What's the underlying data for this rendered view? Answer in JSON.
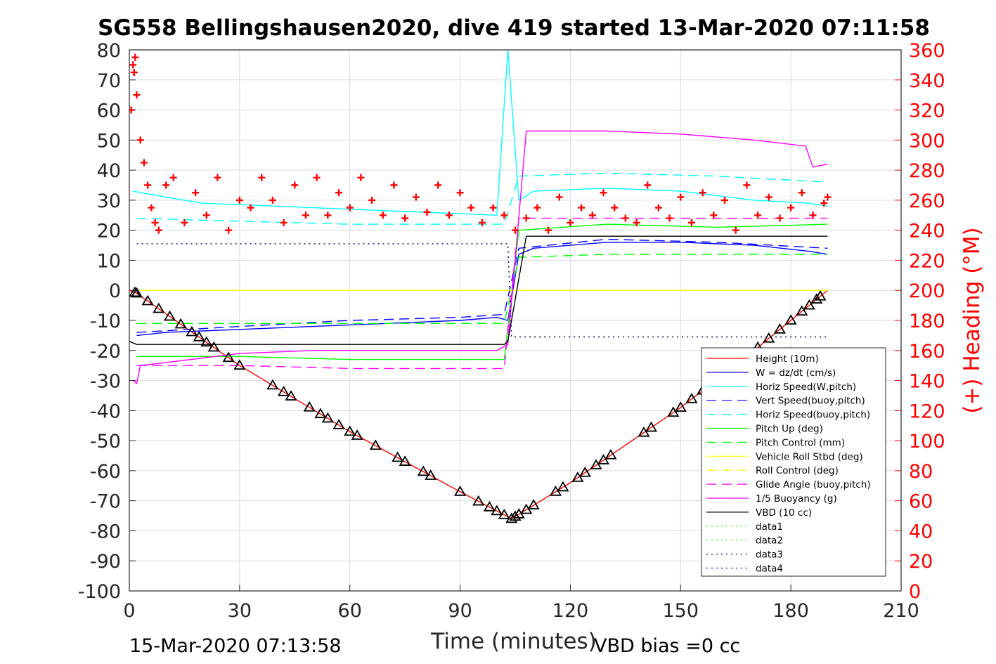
{
  "chart_data": {
    "type": "line",
    "title": "SG558 Bellingshausen2020, dive 419 started 13-Mar-2020 07:11:58",
    "xlabel": "Time (minutes)",
    "ylabel": "",
    "y2label": "(+) Heading (°M)",
    "xlim": [
      0,
      210
    ],
    "ylim": [
      -100,
      80
    ],
    "y2lim": [
      0,
      360
    ],
    "xticks": [
      "0",
      "30",
      "60",
      "90",
      "120",
      "150",
      "180",
      "210"
    ],
    "yticks": [
      "80",
      "70",
      "60",
      "50",
      "40",
      "30",
      "20",
      "10",
      "0",
      "-10",
      "-20",
      "-30",
      "-40",
      "-50",
      "-60",
      "-70",
      "-80",
      "-90",
      "-100"
    ],
    "y2ticks": [
      "360",
      "340",
      "320",
      "300",
      "280",
      "260",
      "240",
      "220",
      "200",
      "180",
      "160",
      "140",
      "120",
      "100",
      "80",
      "60",
      "40",
      "20",
      "0"
    ],
    "grid": true,
    "legend_position": "bottom-right",
    "footer_left": "15-Mar-2020 07:13:58",
    "footer_right": "VBD bias =0 cc",
    "series": [
      {
        "name": "Height (10m)",
        "color": "#ff0000",
        "style": "solid",
        "x": [
          0,
          2,
          30,
          60,
          90,
          104,
          120,
          150,
          170,
          190
        ],
        "y": [
          0,
          -1,
          -25,
          -47,
          -67,
          -76,
          -64,
          -39,
          -20,
          0
        ]
      },
      {
        "name": "W = dz/dt (cm/s)",
        "color": "#0000ff",
        "style": "solid",
        "x": [
          2,
          10,
          30,
          50,
          70,
          90,
          100,
          103,
          106,
          110,
          130,
          150,
          170,
          185,
          190
        ],
        "y": [
          -15,
          -14,
          -13,
          -12,
          -11,
          -10,
          -9,
          -10,
          12,
          14,
          16,
          16,
          15,
          13,
          12
        ]
      },
      {
        "name": "Horiz Speed(W,pitch)",
        "color": "#00ffff",
        "style": "solid",
        "x": [
          1,
          10,
          20,
          40,
          60,
          80,
          100,
          103,
          106,
          110,
          130,
          150,
          170,
          185,
          190
        ],
        "y": [
          33,
          31,
          29,
          28,
          27,
          26,
          25,
          80,
          30,
          33,
          34,
          33,
          30,
          29,
          28
        ]
      },
      {
        "name": "Vert Speed(buoy,pitch)",
        "color": "#0000ff",
        "style": "dashed",
        "x": [
          2,
          30,
          60,
          90,
          102,
          106,
          130,
          160,
          190
        ],
        "y": [
          -14,
          -12,
          -10,
          -9,
          -8,
          14,
          17,
          16,
          14
        ]
      },
      {
        "name": "Horiz Speed(buoy,pitch)",
        "color": "#00ffff",
        "style": "dashed",
        "x": [
          2,
          30,
          60,
          90,
          102,
          106,
          130,
          160,
          190
        ],
        "y": [
          24,
          23,
          22,
          22,
          22,
          38,
          39,
          38,
          36
        ]
      },
      {
        "name": "Pitch Up (deg)",
        "color": "#00ff00",
        "style": "solid",
        "x": [
          2,
          30,
          60,
          90,
          102,
          106,
          130,
          160,
          190
        ],
        "y": [
          -22,
          -22,
          -23,
          -23,
          -23,
          20,
          22,
          21,
          22
        ]
      },
      {
        "name": "Pitch Control (mm)",
        "color": "#00ff00",
        "style": "dashed",
        "x": [
          2,
          30,
          60,
          90,
          102,
          106,
          130,
          160,
          190
        ],
        "y": [
          -11,
          -11,
          -11,
          -11,
          -11,
          11,
          12,
          12,
          12
        ]
      },
      {
        "name": "Vehicle Roll Stbd (deg)",
        "color": "#ffff00",
        "style": "solid",
        "x": [
          2,
          190
        ],
        "y": [
          0,
          0
        ]
      },
      {
        "name": "Roll Control (deg)",
        "color": "#ffff00",
        "style": "dashed",
        "x": [
          2,
          190
        ],
        "y": [
          0,
          0
        ]
      },
      {
        "name": "Glide Angle (buoy,pitch)",
        "color": "#ff00ff",
        "style": "dashed",
        "x": [
          2,
          30,
          60,
          90,
          102,
          106,
          130,
          160,
          190
        ],
        "y": [
          -25,
          -25,
          -26,
          -26,
          -26,
          24,
          24,
          24,
          24
        ]
      },
      {
        "name": "1/5 Buoyancy (g)",
        "color": "#ff00ff",
        "style": "solid",
        "x": [
          1,
          2,
          3,
          10,
          30,
          50,
          70,
          90,
          100,
          103,
          108,
          130,
          150,
          170,
          184,
          186,
          190
        ],
        "y": [
          -30,
          -31,
          -25,
          -24,
          -21,
          -20,
          -20,
          -20,
          -20,
          -18,
          53,
          53,
          52,
          50,
          48,
          41,
          42
        ]
      },
      {
        "name": "VBD (10 cc)",
        "color": "#000000",
        "style": "solid",
        "x": [
          0,
          2,
          102,
          103,
          108,
          190
        ],
        "y": [
          -17,
          -18,
          -18,
          -17,
          18,
          18
        ]
      },
      {
        "name": "data1",
        "color": "#00ff00",
        "style": "dotted",
        "x": [],
        "y": []
      },
      {
        "name": "data2",
        "color": "#00ff00",
        "style": "dotted",
        "x": [],
        "y": []
      },
      {
        "name": "data3",
        "color": "#000080",
        "style": "dotted",
        "x": [
          2,
          103,
          104,
          190
        ],
        "y": [
          15.5,
          15.5,
          -15.5,
          -15.5
        ]
      },
      {
        "name": "data4",
        "color": "#0000ff",
        "style": "dotted",
        "x": [],
        "y": []
      }
    ],
    "heading": {
      "name": "(+) Heading (°M)",
      "color": "#ff0000",
      "marker": "+",
      "axis": "right",
      "x": [
        0.5,
        1,
        1.3,
        1.6,
        2,
        3,
        4,
        5,
        6,
        7,
        8,
        10,
        12,
        15,
        18,
        21,
        24,
        27,
        30,
        33,
        36,
        39,
        42,
        45,
        48,
        51,
        54,
        57,
        60,
        63,
        66,
        69,
        72,
        75,
        78,
        81,
        84,
        87,
        90,
        93,
        96,
        99,
        102,
        105,
        108,
        111,
        114,
        117,
        120,
        123,
        126,
        129,
        132,
        135,
        138,
        141,
        144,
        147,
        150,
        153,
        156,
        159,
        162,
        165,
        168,
        171,
        174,
        177,
        180,
        183,
        186,
        189,
        190
      ],
      "y": [
        320,
        350,
        345,
        355,
        330,
        300,
        285,
        270,
        255,
        245,
        240,
        270,
        275,
        245,
        265,
        250,
        275,
        240,
        260,
        255,
        275,
        260,
        245,
        270,
        250,
        275,
        250,
        265,
        255,
        275,
        260,
        250,
        270,
        248,
        262,
        252,
        270,
        250,
        265,
        255,
        245,
        255,
        250,
        240,
        248,
        255,
        240,
        262,
        245,
        255,
        250,
        265,
        255,
        248,
        245,
        270,
        255,
        248,
        262,
        245,
        265,
        250,
        260,
        240,
        270,
        250,
        262,
        248,
        255,
        265,
        250,
        258,
        262
      ]
    },
    "depth_markers": {
      "marker": "triangle",
      "color": "#000000",
      "x": [
        1.5,
        2,
        5,
        8,
        11,
        14,
        17,
        19,
        21,
        23,
        27,
        30,
        39,
        42,
        44,
        49,
        52,
        54,
        57,
        60,
        62,
        67,
        73,
        75,
        80,
        82,
        90,
        95,
        98,
        100,
        102,
        104,
        105,
        106,
        108,
        110,
        116,
        118,
        122,
        124,
        127,
        129,
        131,
        140,
        142,
        148,
        150,
        153,
        156,
        160,
        165,
        168,
        171,
        174,
        177,
        180,
        183,
        185,
        187,
        188
      ]
    }
  }
}
